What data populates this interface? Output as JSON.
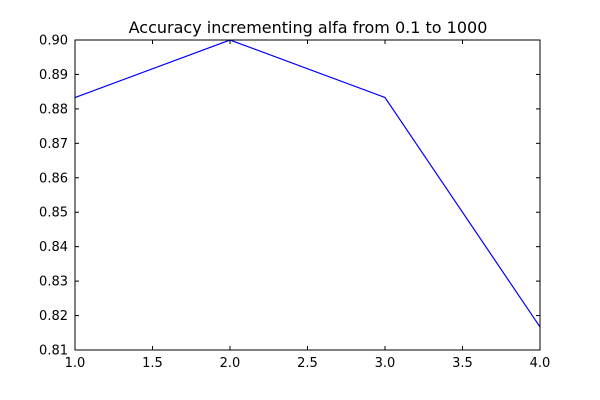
{
  "chart_data": {
    "type": "line",
    "title": "Accuracy incrementing alfa from 0.1 to 1000",
    "xlabel": "",
    "ylabel": "",
    "xlim": [
      1.0,
      4.0
    ],
    "ylim": [
      0.81,
      0.9
    ],
    "x_ticks": [
      "1.0",
      "1.5",
      "2.0",
      "2.5",
      "3.0",
      "3.5",
      "4.0"
    ],
    "y_ticks": [
      "0.81",
      "0.82",
      "0.83",
      "0.84",
      "0.85",
      "0.86",
      "0.87",
      "0.88",
      "0.89",
      "0.90"
    ],
    "grid": false,
    "series": [
      {
        "color": "#0000ff",
        "x": [
          1.0,
          2.0,
          3.0,
          4.0
        ],
        "values": [
          0.8833,
          0.9,
          0.8833,
          0.8167
        ]
      }
    ]
  }
}
